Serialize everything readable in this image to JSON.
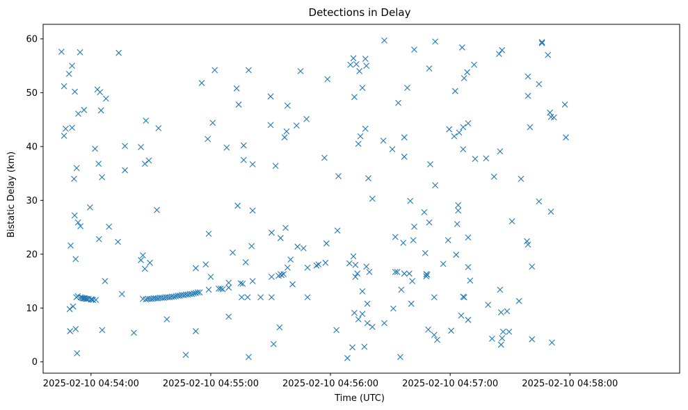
{
  "chart_data": {
    "type": "scatter",
    "title": "Detections in Delay",
    "xlabel": "Time (UTC)",
    "ylabel": "Bistatic Delay (km)",
    "x_unit": "seconds after 2025-02-10 04:53:00 UTC",
    "xlim": [
      36,
      355
    ],
    "ylim": [
      -2.1,
      62.7
    ],
    "grid": false,
    "marker": "x",
    "color": "#1f77b4",
    "xticks": [
      {
        "value": 60,
        "label": "2025-02-10 04:54:00"
      },
      {
        "value": 120,
        "label": "2025-02-10 04:55:00"
      },
      {
        "value": 180,
        "label": "2025-02-10 04:56:00"
      },
      {
        "value": 240,
        "label": "2025-02-10 04:57:00"
      },
      {
        "value": 300,
        "label": "2025-02-10 04:58:00"
      }
    ],
    "yticks": [
      {
        "value": 0,
        "label": "0"
      },
      {
        "value": 10,
        "label": "10"
      },
      {
        "value": 20,
        "label": "20"
      },
      {
        "value": 30,
        "label": "30"
      },
      {
        "value": 40,
        "label": "40"
      },
      {
        "value": 50,
        "label": "50"
      },
      {
        "value": 60,
        "label": "60"
      }
    ],
    "points": [
      [
        45.2,
        57.6
      ],
      [
        46.5,
        51.2
      ],
      [
        46.5,
        42.0
      ],
      [
        47.3,
        43.3
      ],
      [
        49.0,
        53.5
      ],
      [
        49.3,
        9.8
      ],
      [
        49.5,
        5.7
      ],
      [
        49.8,
        21.6
      ],
      [
        50.5,
        55.0
      ],
      [
        50.5,
        43.5
      ],
      [
        51.0,
        10.3
      ],
      [
        51.5,
        34.0
      ],
      [
        51.8,
        27.2
      ],
      [
        51.9,
        50.2
      ],
      [
        52.3,
        19.1
      ],
      [
        52.3,
        6.1
      ],
      [
        52.7,
        12.0
      ],
      [
        52.8,
        36.0
      ],
      [
        53.0,
        1.6
      ],
      [
        53.4,
        12.2
      ],
      [
        53.5,
        25.9
      ],
      [
        53.6,
        46.1
      ],
      [
        54.5,
        57.5
      ],
      [
        54.7,
        25.2
      ],
      [
        54.9,
        12.0
      ],
      [
        55.5,
        11.9
      ],
      [
        56.0,
        11.8
      ],
      [
        56.5,
        46.8
      ],
      [
        56.5,
        11.8
      ],
      [
        57.0,
        11.8
      ],
      [
        57.5,
        11.7
      ],
      [
        58.0,
        11.7
      ],
      [
        58.8,
        11.7
      ],
      [
        59.5,
        28.7
      ],
      [
        60.0,
        11.6
      ],
      [
        60.5,
        11.6
      ],
      [
        61.0,
        11.5
      ],
      [
        62.0,
        39.6
      ],
      [
        62.4,
        11.5
      ],
      [
        63.2,
        50.6
      ],
      [
        63.8,
        36.8
      ],
      [
        64.0,
        22.8
      ],
      [
        64.5,
        50.1
      ],
      [
        65.0,
        46.7
      ],
      [
        65.5,
        34.3
      ],
      [
        65.6,
        5.9
      ],
      [
        67.0,
        15.0
      ],
      [
        67.5,
        48.9
      ],
      [
        69.0,
        25.1
      ],
      [
        73.5,
        22.3
      ],
      [
        73.9,
        57.4
      ],
      [
        75.5,
        12.6
      ],
      [
        77.0,
        40.1
      ],
      [
        77.0,
        35.6
      ],
      [
        81.5,
        5.4
      ],
      [
        85.0,
        39.9
      ],
      [
        85.0,
        18.9
      ],
      [
        86.0,
        19.8
      ],
      [
        86.0,
        11.7
      ],
      [
        87.0,
        17.3
      ],
      [
        87.0,
        36.8
      ],
      [
        87.5,
        11.6
      ],
      [
        87.5,
        44.8
      ],
      [
        88.5,
        11.7
      ],
      [
        89.0,
        37.4
      ],
      [
        89.5,
        18.4
      ],
      [
        89.5,
        11.7
      ],
      [
        90.5,
        11.7
      ],
      [
        91.5,
        11.8
      ],
      [
        92.5,
        11.8
      ],
      [
        93.0,
        28.2
      ],
      [
        93.5,
        11.8
      ],
      [
        93.8,
        43.4
      ],
      [
        94.5,
        11.9
      ],
      [
        95.5,
        11.9
      ],
      [
        96.5,
        11.9
      ],
      [
        97.5,
        12.0
      ],
      [
        98.0,
        7.9
      ],
      [
        98.5,
        12.0
      ],
      [
        99.5,
        12.0
      ],
      [
        100.5,
        12.1
      ],
      [
        101.5,
        12.1
      ],
      [
        102.5,
        12.2
      ],
      [
        103.5,
        12.3
      ],
      [
        104.5,
        12.3
      ],
      [
        105.5,
        12.4
      ],
      [
        106.5,
        12.4
      ],
      [
        107.5,
        1.3
      ],
      [
        107.5,
        12.5
      ],
      [
        108.5,
        12.5
      ],
      [
        109.5,
        12.6
      ],
      [
        110.5,
        12.6
      ],
      [
        111.5,
        12.7
      ],
      [
        112.5,
        17.4
      ],
      [
        112.5,
        5.7
      ],
      [
        112.5,
        12.8
      ],
      [
        113.5,
        12.9
      ],
      [
        114.5,
        12.9
      ],
      [
        115.5,
        51.8
      ],
      [
        117.5,
        18.1
      ],
      [
        118.5,
        41.4
      ],
      [
        119.0,
        23.8
      ],
      [
        119.0,
        13.4
      ],
      [
        120.0,
        15.8
      ],
      [
        121.0,
        44.4
      ],
      [
        122.0,
        54.2
      ],
      [
        124.0,
        13.6
      ],
      [
        125.0,
        13.6
      ],
      [
        126.0,
        13.5
      ],
      [
        128.0,
        39.8
      ],
      [
        129.0,
        13.8
      ],
      [
        129.0,
        8.4
      ],
      [
        129.0,
        14.7
      ],
      [
        131.0,
        20.3
      ],
      [
        133.0,
        50.8
      ],
      [
        133.5,
        29.0
      ],
      [
        134.0,
        47.8
      ],
      [
        135.0,
        14.6
      ],
      [
        135.5,
        12.0
      ],
      [
        136.0,
        14.5
      ],
      [
        136.5,
        40.2
      ],
      [
        136.5,
        37.5
      ],
      [
        137.5,
        18.5
      ],
      [
        138.5,
        12.0
      ],
      [
        139.0,
        54.2
      ],
      [
        139.0,
        0.9
      ],
      [
        140.5,
        21.5
      ],
      [
        141.0,
        28.1
      ],
      [
        141.0,
        15.0
      ],
      [
        141.0,
        36.7
      ],
      [
        145.0,
        12.0
      ],
      [
        150.0,
        49.3
      ],
      [
        150.0,
        44.0
      ],
      [
        150.5,
        24.0
      ],
      [
        150.5,
        12.0
      ],
      [
        150.5,
        15.8
      ],
      [
        151.5,
        3.3
      ],
      [
        152.5,
        36.4
      ],
      [
        154.0,
        16.0
      ],
      [
        154.5,
        6.4
      ],
      [
        155.0,
        16.3
      ],
      [
        155.0,
        23.0
      ],
      [
        155.5,
        16.1
      ],
      [
        156.5,
        16.3
      ],
      [
        157.0,
        41.7
      ],
      [
        157.5,
        24.9
      ],
      [
        158.0,
        42.8
      ],
      [
        158.5,
        47.6
      ],
      [
        158.5,
        17.5
      ],
      [
        160.0,
        19.0
      ],
      [
        161.0,
        14.4
      ],
      [
        163.0,
        43.9
      ],
      [
        163.5,
        21.4
      ],
      [
        165.0,
        54.0
      ],
      [
        166.5,
        21.1
      ],
      [
        168.0,
        45.1
      ],
      [
        168.5,
        17.5
      ],
      [
        168.5,
        12.0
      ],
      [
        173.0,
        17.9
      ],
      [
        174.0,
        18.1
      ],
      [
        177.0,
        37.9
      ],
      [
        177.5,
        18.4
      ],
      [
        178.0,
        22.0
      ],
      [
        178.5,
        52.5
      ],
      [
        183.0,
        5.9
      ],
      [
        183.5,
        24.4
      ],
      [
        184.0,
        34.5
      ],
      [
        188.5,
        0.7
      ],
      [
        189.5,
        18.3
      ],
      [
        190.0,
        55.2
      ],
      [
        191.0,
        2.7
      ],
      [
        191.5,
        56.4
      ],
      [
        191.5,
        19.6
      ],
      [
        192.0,
        49.2
      ],
      [
        192.0,
        9.1
      ],
      [
        192.5,
        15.8
      ],
      [
        192.5,
        18.0
      ],
      [
        193.0,
        55.3
      ],
      [
        193.5,
        16.4
      ],
      [
        194.0,
        7.9
      ],
      [
        194.0,
        40.5
      ],
      [
        194.5,
        54.0
      ],
      [
        195.0,
        41.9
      ],
      [
        196.0,
        50.9
      ],
      [
        196.0,
        13.1
      ],
      [
        196.0,
        8.9
      ],
      [
        197.0,
        2.8
      ],
      [
        197.5,
        56.3
      ],
      [
        197.5,
        43.3
      ],
      [
        198.0,
        55.0
      ],
      [
        198.0,
        17.7
      ],
      [
        198.5,
        7.2
      ],
      [
        198.5,
        10.8
      ],
      [
        199.0,
        34.1
      ],
      [
        199.5,
        16.7
      ],
      [
        201.0,
        30.3
      ],
      [
        201.0,
        6.5
      ],
      [
        206.5,
        41.1
      ],
      [
        207.0,
        7.2
      ],
      [
        207.0,
        59.7
      ],
      [
        211.0,
        39.5
      ],
      [
        211.5,
        9.9
      ],
      [
        212.5,
        16.7
      ],
      [
        212.5,
        23.2
      ],
      [
        213.5,
        16.7
      ],
      [
        214.0,
        48.1
      ],
      [
        215.0,
        0.9
      ],
      [
        215.5,
        13.4
      ],
      [
        216.5,
        22.1
      ],
      [
        217.0,
        16.4
      ],
      [
        217.0,
        41.7
      ],
      [
        217.0,
        38.1
      ],
      [
        218.5,
        50.9
      ],
      [
        219.5,
        16.4
      ],
      [
        220.0,
        29.9
      ],
      [
        220.5,
        10.8
      ],
      [
        221.0,
        15.0
      ],
      [
        221.5,
        22.6
      ],
      [
        222.0,
        58.0
      ],
      [
        222.0,
        25.1
      ],
      [
        227.0,
        27.8
      ],
      [
        227.5,
        20.2
      ],
      [
        228.0,
        16.3
      ],
      [
        228.0,
        15.9
      ],
      [
        228.5,
        16.2
      ],
      [
        229.0,
        6.0
      ],
      [
        229.5,
        54.5
      ],
      [
        229.5,
        25.9
      ],
      [
        230.0,
        36.7
      ],
      [
        232.0,
        12.0
      ],
      [
        232.0,
        5.0
      ],
      [
        232.5,
        32.8
      ],
      [
        232.5,
        59.5
      ],
      [
        233.5,
        4.1
      ],
      [
        236.5,
        18.2
      ],
      [
        239.0,
        22.6
      ],
      [
        239.5,
        43.2
      ],
      [
        240.5,
        5.8
      ],
      [
        242.0,
        41.9
      ],
      [
        242.5,
        50.3
      ],
      [
        243.0,
        19.9
      ],
      [
        243.5,
        25.6
      ],
      [
        244.0,
        28.1
      ],
      [
        244.0,
        29.1
      ],
      [
        244.5,
        42.6
      ],
      [
        245.5,
        8.6
      ],
      [
        246.0,
        58.4
      ],
      [
        246.5,
        39.5
      ],
      [
        246.5,
        43.6
      ],
      [
        246.5,
        12.1
      ],
      [
        247.0,
        52.7
      ],
      [
        247.0,
        12.0
      ],
      [
        248.5,
        53.8
      ],
      [
        249.0,
        44.3
      ],
      [
        249.0,
        23.1
      ],
      [
        249.0,
        17.6
      ],
      [
        249.0,
        7.8
      ],
      [
        250.0,
        15.1
      ],
      [
        252.0,
        55.2
      ],
      [
        252.5,
        37.7
      ],
      [
        258.0,
        37.8
      ],
      [
        259.0,
        10.6
      ],
      [
        261.0,
        4.3
      ],
      [
        262.0,
        34.4
      ],
      [
        264.5,
        57.2
      ],
      [
        265.0,
        13.4
      ],
      [
        265.0,
        39.1
      ],
      [
        265.5,
        3.2
      ],
      [
        265.5,
        9.2
      ],
      [
        266.0,
        57.9
      ],
      [
        266.0,
        4.4
      ],
      [
        266.5,
        5.6
      ],
      [
        268.5,
        9.4
      ],
      [
        269.5,
        5.6
      ],
      [
        271.0,
        26.1
      ],
      [
        274.5,
        11.3
      ],
      [
        275.5,
        34.0
      ],
      [
        278.5,
        22.4
      ],
      [
        279.0,
        21.8
      ],
      [
        279.0,
        53.0
      ],
      [
        279.0,
        49.4
      ],
      [
        280.0,
        43.6
      ],
      [
        281.0,
        17.7
      ],
      [
        281.0,
        4.2
      ],
      [
        284.5,
        51.6
      ],
      [
        284.5,
        29.8
      ],
      [
        286.0,
        59.4
      ],
      [
        286.0,
        59.2
      ],
      [
        289.0,
        57.0
      ],
      [
        290.0,
        46.3
      ],
      [
        290.5,
        45.5
      ],
      [
        290.5,
        27.9
      ],
      [
        291.0,
        3.6
      ],
      [
        292.0,
        45.4
      ],
      [
        297.5,
        47.8
      ],
      [
        298.0,
        41.7
      ]
    ]
  }
}
